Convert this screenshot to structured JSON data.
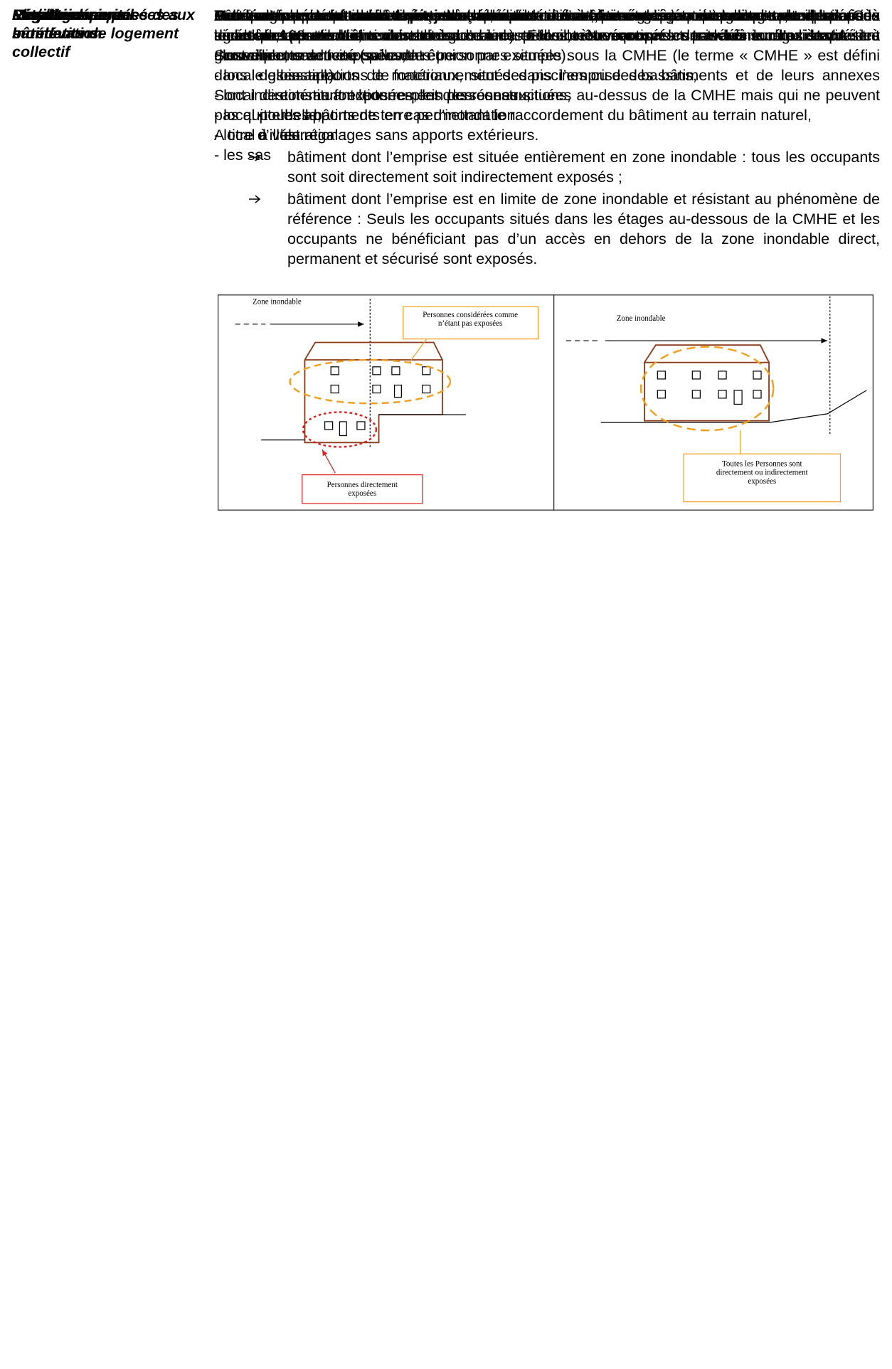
{
  "rows": [
    {
      "term": "Extension au sol",
      "paragraphs": [
        "Construction créant de l’emprise au sol, accolé à un bâtiment existant et disposant d’un accès direct à la construction existante."
      ]
    },
    {
      "term": "Extension par surélévation",
      "paragraphs": [
        "Toute surface de plancher créée en surélévation d’un bâtiment existant s’inscrivant dans l’emprise au sol des constructions existantes."
      ]
    },
    {
      "term": "Local technique",
      "paragraphs": [
        "Bâtiment ou partie de bâtiment, maçonné, destiné à abriter des équipements techniques. Ces locaux ne peuvent être des bureaux et ne peuvent être occupés de manière régulière. A titre d’exemple, ces locaux peuvent être :",
        "- local des installations de fonctionnement des piscines ou des bassins,",
        "- local destiné au fonctionnement des réseaux,",
        "- local poubelle,",
        "- local à vélo.",
        "- les sas"
      ]
    },
    {
      "term": "Mise en sécurité",
      "paragraphs": [
        "La mise en sécurité consiste à assurer aux personnes exposées une zone hors d’eau ou un accès sécurisé. Les termes « zone hors d’eau » et « accès sécurisé » sont définis dans le présent glossaire."
      ]
    },
    {
      "term": "Parties communes des bâtiments de logement collectif",
      "paragraphs": [
        "Ces parties de bâtiment sont celles permettant l’accès aux logements ainsi que les locaux techniques(terme défini dans le glossaire). Elles ne comprennent pas les locaux destinés à accueillir une activité (salle de réunion par exemple)."
      ]
    },
    {
      "term": "Personnes exposées aux inondations",
      "paragraphs": [
        "Personnes pouvant subir directement ou indirectement, les conséquences d’une crue de période de retour 100 ans.",
        "Sont directement exposées, les personnes situées sous la CMHE (le terme « CMHE » est défini dans le glossaire).",
        "Sont indirectement exposées, les personnes situées au-dessus de la CMHE mais qui ne peuvent pas quitter les bâtiments en cas d'inondation.",
        "A titre d’illustration :"
      ],
      "arrow_items": [
        "bâtiment dont l’emprise est située entièrement en zone inondable : tous les occupants sont soit directement soit indirectement exposés ;",
        "bâtiment dont l’emprise est en limite de zone inondable et résistant au phénomène de référence : Seuls les occupants situés dans les étages au-dessous de la CMHE et les occupants ne bénéficiant pas d’un accès en dehors de la zone inondable direct, permanent et sécurisé sont exposés."
      ]
    },
    {
      "term": "Plancher",
      "paragraphs": [
        "Sol dans une construction close et couverte."
      ]
    },
    {
      "term": "Projet",
      "segments": [
        {
          "text": "On désigne par le terme « ",
          "bold": false
        },
        {
          "text": "projet",
          "bold": true
        },
        {
          "text": " », les constructions, ouvrages, aménagements, exploitations agricoles, artisanales, commerciales ou industrielles, ",
          "bold": false
        },
        {
          "text": "nouveaux",
          "bold": true
        },
        {
          "text": " et les ",
          "bold": false
        },
        {
          "text": "travaux sur l'existant",
          "bold": true
        },
        {
          "text": ".",
          "bold": false
        }
      ]
    },
    {
      "term": "Régalage",
      "paragraphs": [
        "Action d’aplanir un terrain de façon à lui donner une surface régulière."
      ]
    },
    {
      "term": "Remblai",
      "paragraphs": [
        "Matériaux de terrassement ou de démolition mis en œuvre par compactage et destinés à surélever le profil d’un terrain ou à combler une fouille. Ne sont pas considérés comme remblai les mouvements de terre suivant :"
      ],
      "bullet_items": [
        "les apports de matériaux, situés dans l’emprise des bâtiments et de leurs annexes constituant le terre-plein des constructions,",
        "les apports de terre permettant le raccordement du bâtiment au terrain naturel,",
        "les régalages sans apports extérieurs."
      ]
    }
  ],
  "figure": {
    "left_zone_label": "Zone inondable",
    "left_not_exposed_label": "Personnes considérées comme n’étant pas exposées",
    "left_direct_label": "Personnes directement exposées",
    "right_zone_label": "Zone inondable",
    "right_all_label": "Toutes les Personnes sont directement ou indirectement exposées"
  }
}
